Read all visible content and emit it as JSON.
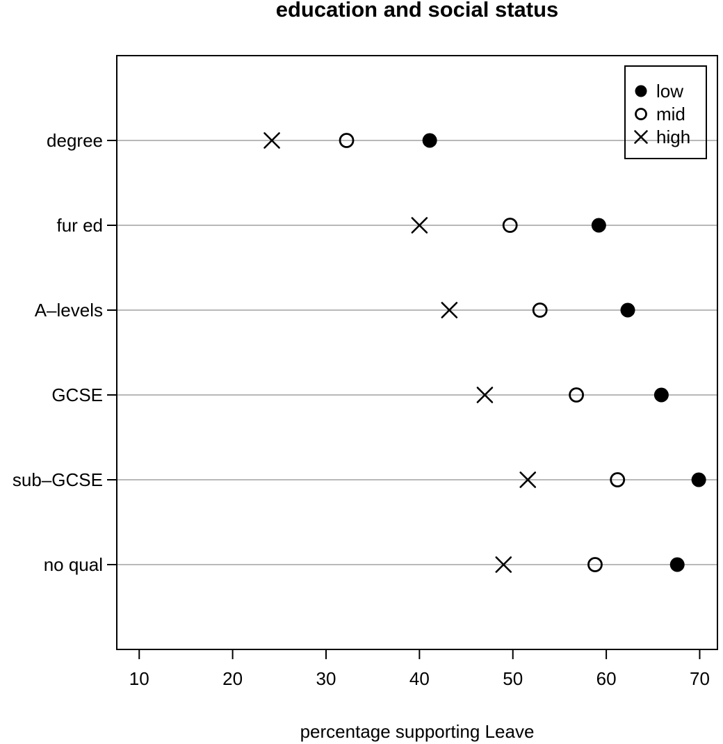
{
  "figure": {
    "title": "education and social status",
    "xlabel": "percentage supporting Leave"
  },
  "chart_data": {
    "type": "scatter",
    "title": "education and social status",
    "xlabel": "percentage supporting Leave",
    "ylabel": "",
    "categories": [
      "degree",
      "fur ed",
      "A–levels",
      "GCSE",
      "sub–GCSE",
      "no qual"
    ],
    "x_ticks": [
      10,
      20,
      30,
      40,
      50,
      60,
      70
    ],
    "xlim": [
      7.6,
      71.9
    ],
    "grid": "horizontal-gray-lines-full-width",
    "grid_color": "#b8b8b8",
    "marker_color": "#000000",
    "background_color": "#ffffff",
    "legend": {
      "position": "top-right",
      "background": "transparent",
      "entries": [
        {
          "label": "low",
          "marker": "filled-circle"
        },
        {
          "label": "mid",
          "marker": "open-circle"
        },
        {
          "label": "high",
          "marker": "x"
        }
      ]
    },
    "series": [
      {
        "name": "low",
        "marker": "filled-circle",
        "values": [
          41.1,
          59.2,
          62.3,
          65.9,
          69.9,
          67.6
        ]
      },
      {
        "name": "mid",
        "marker": "open-circle",
        "values": [
          32.2,
          49.7,
          52.9,
          56.8,
          61.2,
          58.8
        ]
      },
      {
        "name": "high",
        "marker": "x",
        "values": [
          24.2,
          40.0,
          43.2,
          47.0,
          51.6,
          49.0
        ]
      }
    ]
  }
}
